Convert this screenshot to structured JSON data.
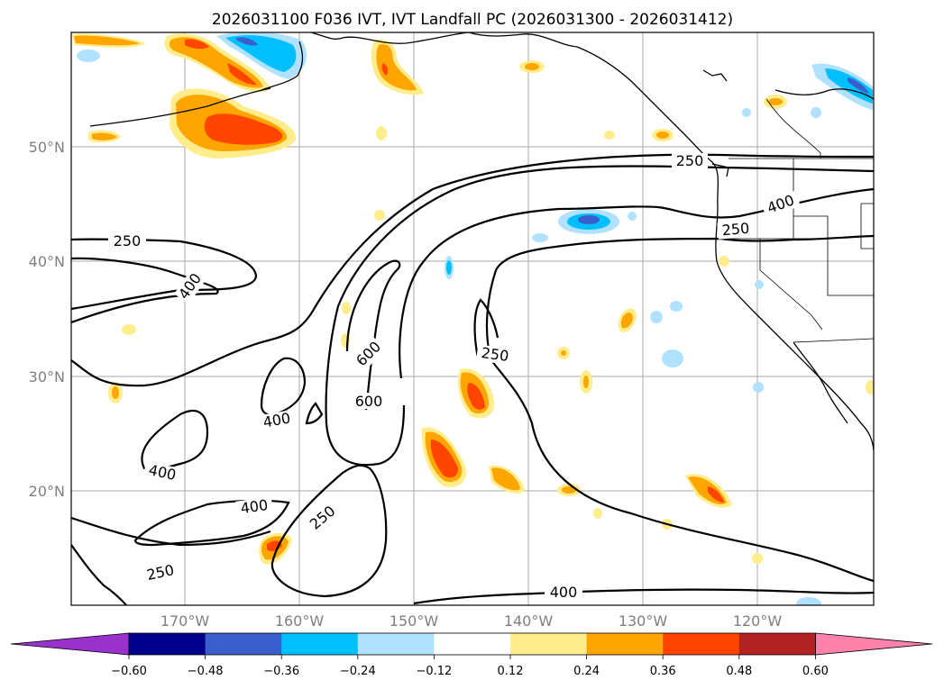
{
  "title": "2026031100 F036 IVT, IVT Landfall PC (2026031300 - 2026031412)",
  "map": {
    "lat_labels": [
      "50°N",
      "40°N",
      "30°N",
      "20°N"
    ],
    "lon_labels": [
      "170°W",
      "160°W",
      "150°W",
      "140°W",
      "130°W",
      "120°W"
    ],
    "contour_labels": [
      {
        "id": "c250-west",
        "text": "250"
      },
      {
        "id": "c400-west",
        "text": "400"
      },
      {
        "id": "c600-upper",
        "text": "600"
      },
      {
        "id": "c600-lower",
        "text": "600"
      },
      {
        "id": "c400-mid",
        "text": "400"
      },
      {
        "id": "c400-sw",
        "text": "400"
      },
      {
        "id": "c400-south",
        "text": "400"
      },
      {
        "id": "c250-south",
        "text": "250"
      },
      {
        "id": "c250-sw",
        "text": "250"
      },
      {
        "id": "c250-mid",
        "text": "250"
      },
      {
        "id": "c250-coast",
        "text": "250"
      },
      {
        "id": "c250-ne",
        "text": "250"
      },
      {
        "id": "c400-ne",
        "text": "400"
      },
      {
        "id": "c400-bottom",
        "text": "400"
      }
    ]
  },
  "colorbar": {
    "ticks": [
      "−0.60",
      "−0.48",
      "−0.36",
      "−0.24",
      "−0.12",
      "0.12",
      "0.24",
      "0.36",
      "0.48",
      "0.60"
    ],
    "colors": [
      "#9932cc",
      "#00008b",
      "#3a5fcd",
      "#00bfff",
      "#b0e2ff",
      "#ffffff",
      "#ffec8b",
      "#ffa500",
      "#ff4500",
      "#b22222",
      "#ff82ab"
    ]
  }
}
